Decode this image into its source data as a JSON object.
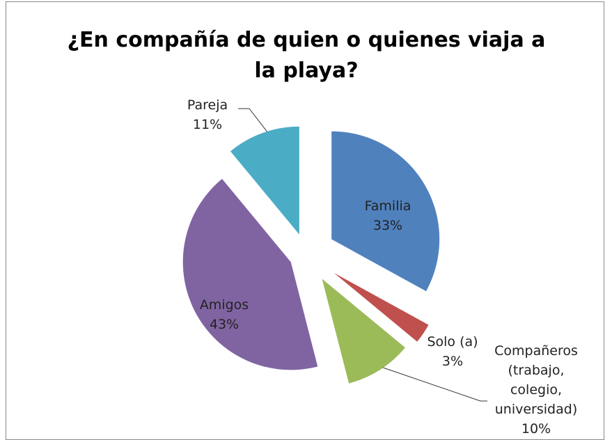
{
  "chart_data": {
    "type": "pie",
    "title": "¿En compañía de quien o quienes viaja a la playa?",
    "categories": [
      "Familia",
      "Solo (a)",
      "Compañeros (trabajo, colegio, universidad)",
      "Amigos",
      "Pareja"
    ],
    "values": [
      33,
      3,
      10,
      43,
      11
    ],
    "value_labels": [
      "33%",
      "3%",
      "10%",
      "43%",
      "11%"
    ],
    "colors": [
      "#4f81bd",
      "#c0504d",
      "#9bbb59",
      "#8064a2",
      "#4bacc6"
    ]
  }
}
